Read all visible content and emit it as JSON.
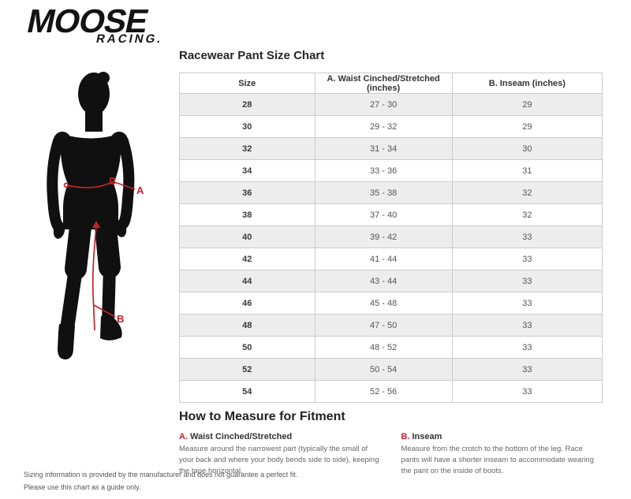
{
  "brand": {
    "line1": "MOOSE",
    "line2": "RACING."
  },
  "figure": {
    "label_a": "A",
    "label_b": "B"
  },
  "size_chart": {
    "title": "Racewear Pant Size Chart",
    "columns": [
      "Size",
      "A. Waist Cinched/Stretched (inches)",
      "B. Inseam (inches)"
    ],
    "rows": [
      [
        "28",
        "27 - 30",
        "29"
      ],
      [
        "30",
        "29 - 32",
        "29"
      ],
      [
        "32",
        "31 - 34",
        "30"
      ],
      [
        "34",
        "33 - 36",
        "31"
      ],
      [
        "36",
        "35 - 38",
        "32"
      ],
      [
        "38",
        "37 - 40",
        "32"
      ],
      [
        "40",
        "39 - 42",
        "33"
      ],
      [
        "42",
        "41 - 44",
        "33"
      ],
      [
        "44",
        "43 - 44",
        "33"
      ],
      [
        "46",
        "45 - 48",
        "33"
      ],
      [
        "48",
        "47 - 50",
        "33"
      ],
      [
        "50",
        "48 - 52",
        "33"
      ],
      [
        "52",
        "50 - 54",
        "33"
      ],
      [
        "54",
        "52 - 56",
        "33"
      ]
    ]
  },
  "how_to": {
    "title": "How to Measure for Fitment",
    "sections": [
      {
        "letter": "A.",
        "name": "Waist Cinched/Stretched",
        "body": "Measure around the narrowest part (typically the small of your back and where your body bends side to side), keeping the tape horizontal."
      },
      {
        "letter": "B.",
        "name": "Inseam",
        "body": "Measure from the crotch to the bottom of the leg. Race pants will have a shorter inseam to accommodate wearing the pant on the inside of boots."
      }
    ]
  },
  "footer": {
    "line1": "Sizing information is provided by the manufacturer and does not guarantee a perfect fit.",
    "line2": "Please use this chart as a guide only."
  },
  "colors": {
    "accent_red": "#c3232c",
    "silhouette_black": "#101010",
    "table_border": "#cccccc",
    "row_alt": "#ededed"
  }
}
